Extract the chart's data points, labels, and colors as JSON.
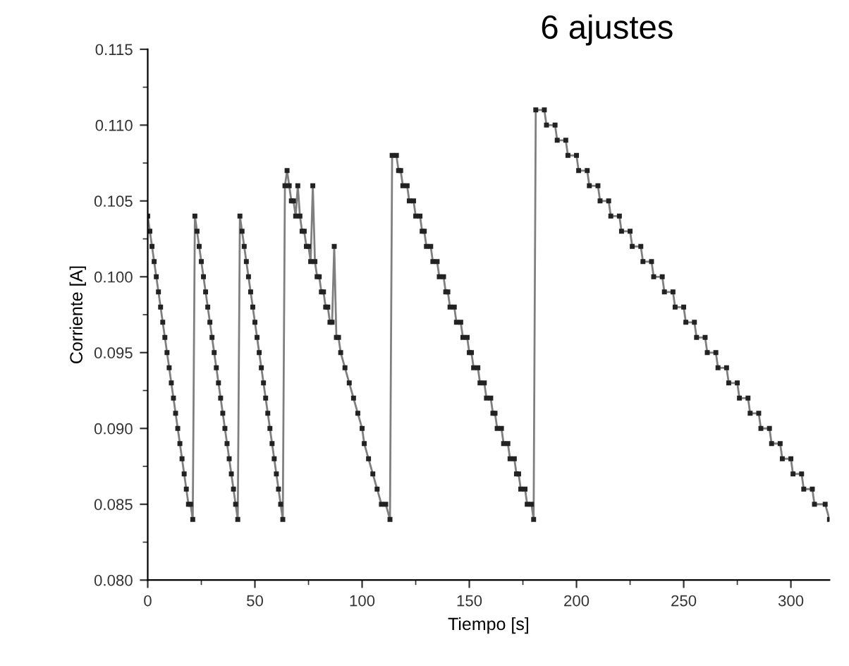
{
  "chart_data": {
    "type": "line",
    "title": "6 ajustes",
    "xlabel": "Tiempo [s]",
    "ylabel": "Corriente [A]",
    "xlim": [
      0,
      318
    ],
    "xticks": [
      0,
      50,
      100,
      150,
      200,
      250,
      300
    ],
    "ylim": [
      0.08,
      0.115
    ],
    "yticks": [
      {
        "value": 0.08,
        "label": "0.080"
      },
      {
        "value": 0.085,
        "label": "0.085"
      },
      {
        "value": 0.09,
        "label": "0.090"
      },
      {
        "value": 0.095,
        "label": "0.095"
      },
      {
        "value": 0.1,
        "label": "0.100"
      },
      {
        "value": 0.105,
        "label": "0.105"
      },
      {
        "value": 0.11,
        "label": "0.110"
      },
      {
        "value": 0.115,
        "label": "0.115"
      }
    ],
    "grid": false,
    "marker": "square",
    "line_style": "solid",
    "series": [
      {
        "color": "#7f7f7f",
        "x": [
          0,
          1,
          2,
          3,
          4,
          5,
          6,
          7,
          8,
          9,
          10,
          11,
          12,
          13,
          14,
          15,
          16,
          17,
          18,
          19,
          20,
          21,
          22,
          23,
          24,
          25,
          26,
          27,
          28,
          29,
          30,
          31,
          32,
          33,
          34,
          35,
          36,
          37,
          38,
          39,
          40,
          41,
          42,
          43,
          44,
          45,
          46,
          47,
          48,
          49,
          50,
          51,
          52,
          53,
          54,
          55,
          56,
          57,
          58,
          59,
          60,
          61,
          62,
          63,
          64,
          65,
          66,
          67,
          68,
          69,
          70,
          71,
          72,
          73,
          74,
          75,
          76,
          77,
          78,
          79,
          80,
          81,
          82,
          83,
          84,
          85,
          86,
          87,
          88,
          89,
          90,
          92,
          94,
          96,
          98,
          100,
          101,
          103,
          105,
          107,
          109,
          111,
          113,
          114,
          116,
          117,
          118,
          119,
          121,
          122,
          124,
          125,
          127,
          128,
          129,
          130,
          132,
          133,
          135,
          136,
          138,
          139,
          140,
          141,
          143,
          144,
          146,
          147,
          149,
          150,
          151,
          152,
          154,
          155,
          157,
          158,
          160,
          161,
          162,
          163,
          165,
          166,
          168,
          169,
          171,
          172,
          173,
          174,
          176,
          177,
          179,
          180,
          181,
          185,
          186,
          190,
          191,
          195,
          196,
          200,
          201,
          205,
          206,
          210,
          211,
          215,
          216,
          220,
          221,
          225,
          226,
          230,
          231,
          235,
          236,
          240,
          241,
          245,
          246,
          250,
          251,
          255,
          256,
          260,
          261,
          265,
          266,
          270,
          271,
          275,
          276,
          280,
          281,
          285,
          286,
          290,
          291,
          295,
          296,
          300,
          301,
          305,
          306,
          310,
          311,
          316,
          318
        ],
        "values": [
          0.104,
          0.103,
          0.102,
          0.101,
          0.1,
          0.099,
          0.098,
          0.097,
          0.096,
          0.095,
          0.094,
          0.093,
          0.092,
          0.091,
          0.09,
          0.089,
          0.088,
          0.087,
          0.086,
          0.085,
          0.085,
          0.084,
          0.104,
          0.103,
          0.102,
          0.101,
          0.1,
          0.099,
          0.098,
          0.097,
          0.096,
          0.095,
          0.094,
          0.093,
          0.092,
          0.091,
          0.09,
          0.089,
          0.088,
          0.087,
          0.086,
          0.085,
          0.084,
          0.104,
          0.103,
          0.102,
          0.101,
          0.1,
          0.099,
          0.098,
          0.097,
          0.096,
          0.095,
          0.094,
          0.093,
          0.092,
          0.091,
          0.09,
          0.089,
          0.088,
          0.087,
          0.086,
          0.085,
          0.084,
          0.106,
          0.107,
          0.106,
          0.105,
          0.105,
          0.104,
          0.106,
          0.104,
          0.103,
          0.103,
          0.102,
          0.102,
          0.101,
          0.106,
          0.101,
          0.1,
          0.1,
          0.099,
          0.099,
          0.098,
          0.098,
          0.097,
          0.097,
          0.102,
          0.096,
          0.096,
          0.095,
          0.094,
          0.093,
          0.092,
          0.091,
          0.09,
          0.089,
          0.088,
          0.087,
          0.086,
          0.085,
          0.085,
          0.084,
          0.108,
          0.108,
          0.107,
          0.107,
          0.106,
          0.106,
          0.105,
          0.105,
          0.104,
          0.104,
          0.103,
          0.103,
          0.102,
          0.102,
          0.101,
          0.101,
          0.1,
          0.1,
          0.099,
          0.099,
          0.098,
          0.098,
          0.097,
          0.097,
          0.096,
          0.096,
          0.095,
          0.095,
          0.094,
          0.094,
          0.093,
          0.093,
          0.092,
          0.092,
          0.091,
          0.091,
          0.09,
          0.09,
          0.089,
          0.089,
          0.088,
          0.088,
          0.087,
          0.087,
          0.086,
          0.086,
          0.085,
          0.085,
          0.084,
          0.111,
          0.111,
          0.11,
          0.11,
          0.109,
          0.109,
          0.108,
          0.108,
          0.107,
          0.107,
          0.106,
          0.106,
          0.105,
          0.105,
          0.104,
          0.104,
          0.103,
          0.103,
          0.102,
          0.102,
          0.101,
          0.101,
          0.1,
          0.1,
          0.099,
          0.099,
          0.098,
          0.098,
          0.097,
          0.097,
          0.096,
          0.096,
          0.095,
          0.095,
          0.094,
          0.094,
          0.093,
          0.093,
          0.092,
          0.092,
          0.091,
          0.091,
          0.09,
          0.09,
          0.089,
          0.089,
          0.088,
          0.088,
          0.087,
          0.087,
          0.086,
          0.086,
          0.085,
          0.085,
          0.084
        ]
      }
    ]
  }
}
